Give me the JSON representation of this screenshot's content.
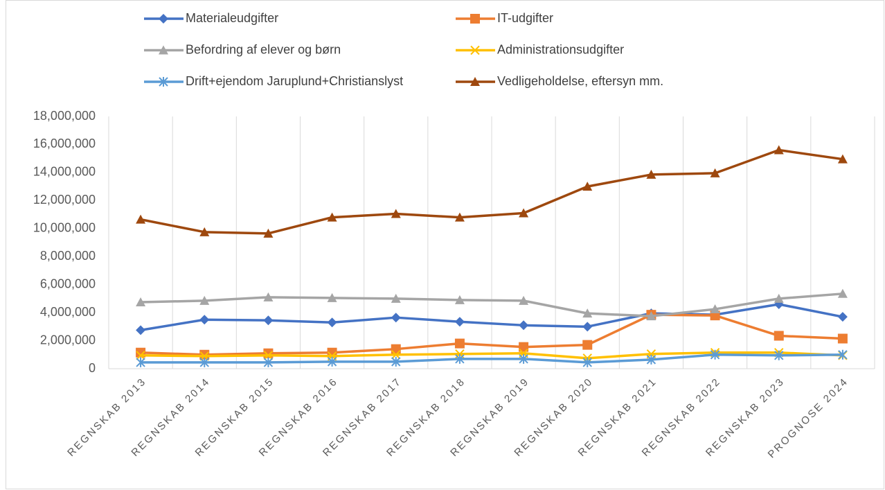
{
  "chart_data": {
    "type": "line",
    "categories": [
      "REGNSKAB 2013",
      "REGNSKAB 2014",
      "REGNSKAB 2015",
      "REGNSKAB 2016",
      "REGNSKAB 2017",
      "REGNSKAB 2018",
      "REGNSKAB 2019",
      "REGNSKAB 2020",
      "REGNSKAB 2021",
      "REGNSKAB 2022",
      "REGNSKAB 2023",
      "PROGNOSE 2024"
    ],
    "series": [
      {
        "name": "Materialeudgifter",
        "color": "#4472c4",
        "marker": "diamond",
        "values": [
          2750000,
          3500000,
          3450000,
          3300000,
          3650000,
          3350000,
          3100000,
          3000000,
          3950000,
          3850000,
          4600000,
          3700000
        ]
      },
      {
        "name": "IT-udgifter",
        "color": "#ed7d31",
        "marker": "square",
        "values": [
          1150000,
          1000000,
          1100000,
          1150000,
          1400000,
          1800000,
          1550000,
          1700000,
          3850000,
          3800000,
          2350000,
          2150000
        ]
      },
      {
        "name": "Befordring af elever og børn",
        "color": "#a5a5a5",
        "marker": "triangle",
        "values": [
          4750000,
          4850000,
          5100000,
          5050000,
          5000000,
          4900000,
          4850000,
          3950000,
          3750000,
          4250000,
          5000000,
          5350000
        ]
      },
      {
        "name": "Administrationsudgifter",
        "color": "#ffc000",
        "marker": "x",
        "values": [
          950000,
          900000,
          950000,
          900000,
          1000000,
          1050000,
          1100000,
          750000,
          1050000,
          1150000,
          1150000,
          950000
        ]
      },
      {
        "name": "Drift+ejendom Jaruplund+Christianslyst",
        "color": "#5b9bd5",
        "marker": "star",
        "values": [
          450000,
          450000,
          450000,
          500000,
          500000,
          700000,
          700000,
          450000,
          650000,
          1000000,
          950000,
          1000000
        ]
      },
      {
        "name": "Vedligeholdelse, eftersyn mm.",
        "color": "#9e480e",
        "marker": "triangle",
        "values": [
          10650000,
          9750000,
          9650000,
          10800000,
          11050000,
          10800000,
          11100000,
          13000000,
          13850000,
          13950000,
          15600000,
          14950000
        ]
      }
    ],
    "ylim": [
      0,
      18000000
    ],
    "yticks": [
      0,
      {
        "value": 2000000,
        "label": "2,000,000"
      },
      {
        "value": 4000000,
        "label": "4,000,000"
      },
      {
        "value": 6000000,
        "label": "6,000,000"
      },
      {
        "value": 8000000,
        "label": "8,000,000"
      },
      {
        "value": 10000000,
        "label": "10,000,000"
      },
      {
        "value": 12000000,
        "label": "12,000,000"
      },
      {
        "value": 14000000,
        "label": "14,000,000"
      },
      {
        "value": 16000000,
        "label": "16,000,000"
      },
      {
        "value": 18000000,
        "label": "18,000,000"
      }
    ],
    "legend": "top"
  }
}
